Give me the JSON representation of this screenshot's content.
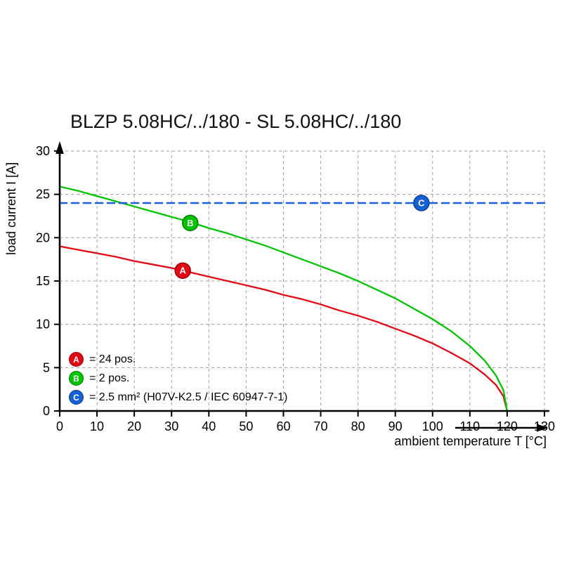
{
  "title": "BLZP 5.08HC/../180 - SL 5.08HC/../180",
  "chart_data": {
    "type": "line",
    "title": "BLZP 5.08HC/../180 - SL 5.08HC/../180",
    "xlabel": "ambient temperature T [°C]",
    "ylabel": "load current I [A]",
    "xlim": [
      0,
      130
    ],
    "ylim": [
      0,
      30
    ],
    "xticks": [
      0,
      10,
      20,
      30,
      40,
      50,
      60,
      70,
      80,
      90,
      100,
      110,
      120,
      130
    ],
    "yticks": [
      0,
      5,
      10,
      15,
      20,
      25,
      30
    ],
    "grid": "dashed",
    "legend_position": "bottom-left-inside",
    "series": [
      {
        "name": "A",
        "label": "= 24 pos.",
        "color": "#e30613",
        "edge_color": "#9c000a",
        "style": "solid",
        "points": [
          [
            0,
            19.0
          ],
          [
            5,
            18.6
          ],
          [
            10,
            18.2
          ],
          [
            15,
            17.8
          ],
          [
            20,
            17.3
          ],
          [
            25,
            16.9
          ],
          [
            30,
            16.5
          ],
          [
            35,
            16.0
          ],
          [
            40,
            15.5
          ],
          [
            45,
            15.0
          ],
          [
            50,
            14.5
          ],
          [
            55,
            14.0
          ],
          [
            60,
            13.4
          ],
          [
            65,
            12.9
          ],
          [
            70,
            12.3
          ],
          [
            75,
            11.6
          ],
          [
            80,
            11.0
          ],
          [
            85,
            10.3
          ],
          [
            90,
            9.5
          ],
          [
            95,
            8.7
          ],
          [
            100,
            7.8
          ],
          [
            105,
            6.7
          ],
          [
            110,
            5.5
          ],
          [
            114,
            4.2
          ],
          [
            117,
            3.0
          ],
          [
            119,
            1.7
          ],
          [
            120,
            0
          ]
        ],
        "marker": {
          "x": 33,
          "y": 16.2
        }
      },
      {
        "name": "B",
        "label": "= 2 pos.",
        "color": "#00c400",
        "edge_color": "#007d00",
        "style": "solid",
        "points": [
          [
            0,
            25.9
          ],
          [
            5,
            25.4
          ],
          [
            10,
            24.8
          ],
          [
            15,
            24.2
          ],
          [
            20,
            23.6
          ],
          [
            25,
            23.0
          ],
          [
            30,
            22.4
          ],
          [
            35,
            21.8
          ],
          [
            40,
            21.1
          ],
          [
            45,
            20.5
          ],
          [
            50,
            19.8
          ],
          [
            55,
            19.1
          ],
          [
            60,
            18.3
          ],
          [
            65,
            17.5
          ],
          [
            70,
            16.7
          ],
          [
            75,
            15.9
          ],
          [
            80,
            15.0
          ],
          [
            85,
            14.0
          ],
          [
            90,
            13.0
          ],
          [
            95,
            11.8
          ],
          [
            100,
            10.6
          ],
          [
            105,
            9.2
          ],
          [
            110,
            7.5
          ],
          [
            114,
            5.8
          ],
          [
            117,
            4.1
          ],
          [
            119,
            2.4
          ],
          [
            120,
            0
          ]
        ],
        "marker": {
          "x": 35,
          "y": 21.7
        }
      },
      {
        "name": "C",
        "label": "= 2.5 mm² (H07V-K2.5 / IEC 60947-7-1)",
        "color": "#1560d4",
        "edge_color": "#0c3f93",
        "style": "dashed",
        "points": [
          [
            0,
            24
          ],
          [
            130,
            24
          ]
        ],
        "marker": {
          "x": 97,
          "y": 24
        }
      }
    ]
  }
}
